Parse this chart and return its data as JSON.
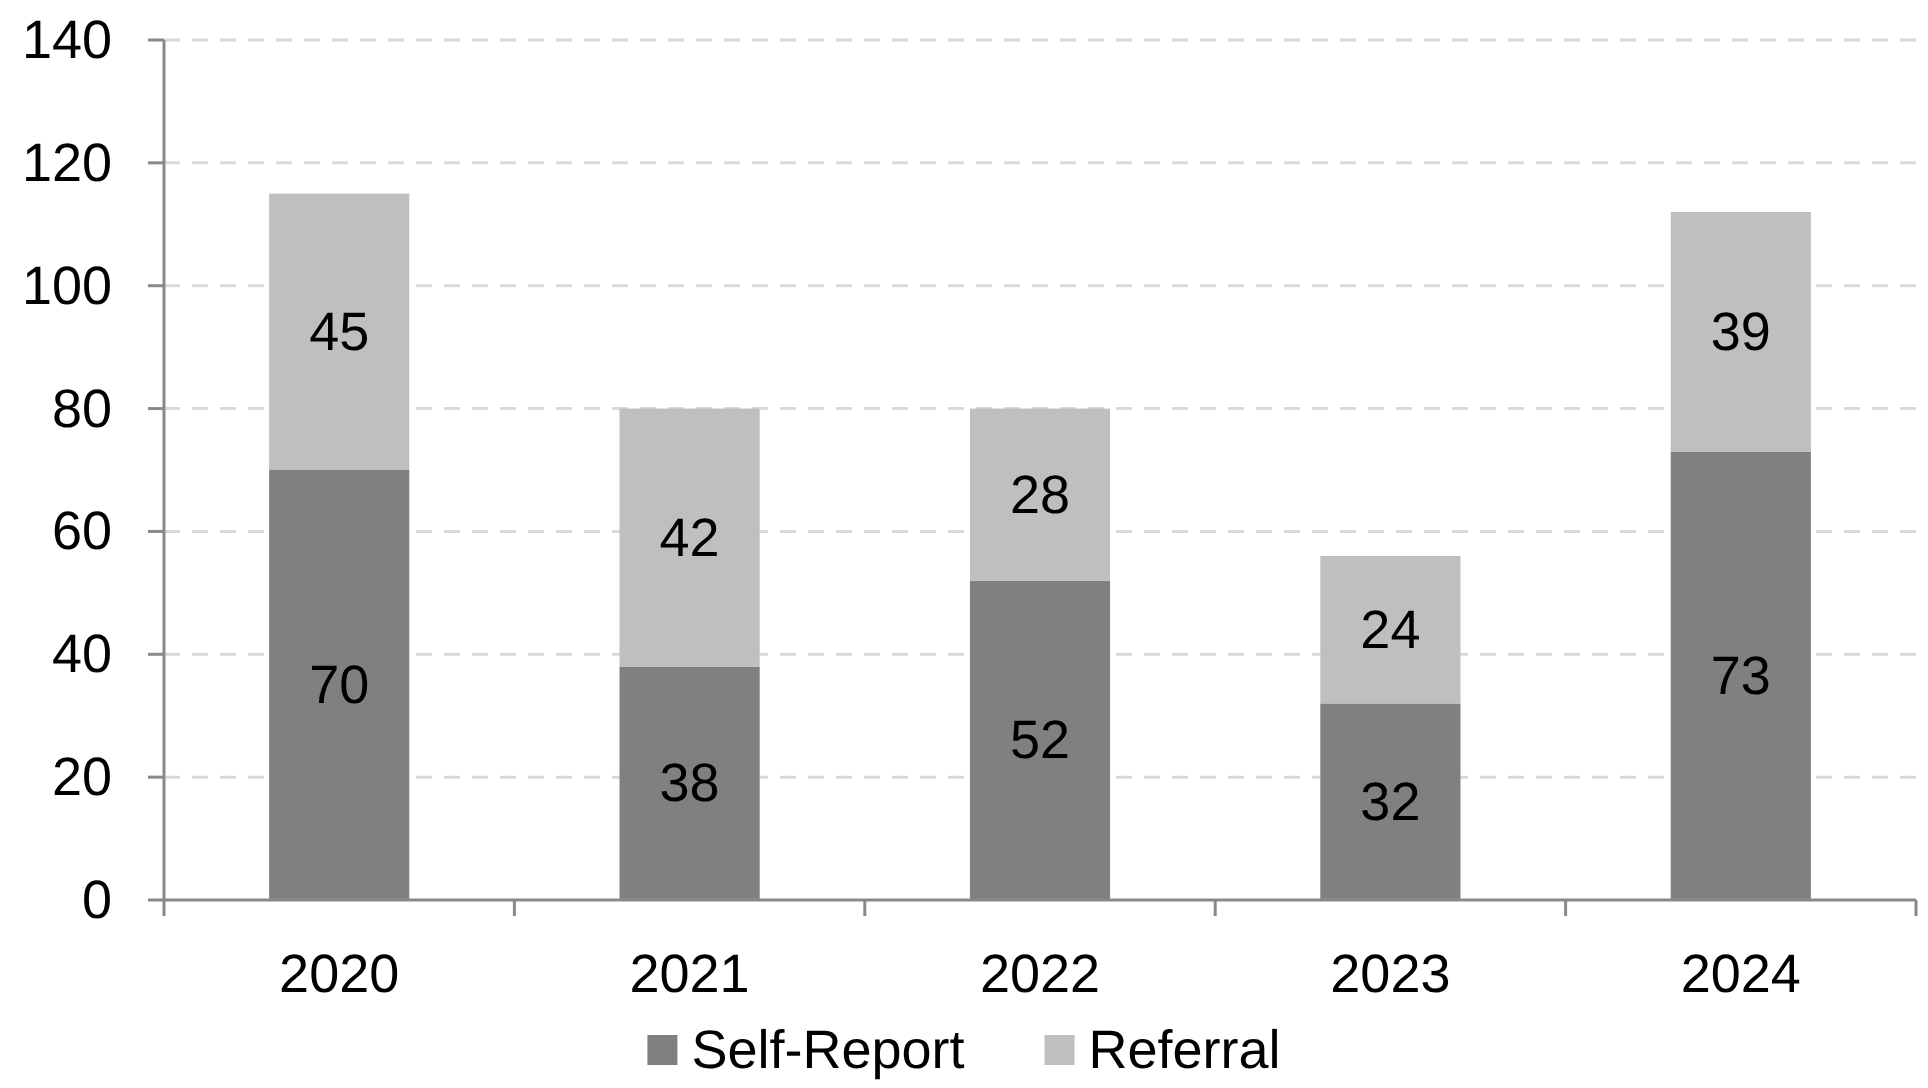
{
  "chart_data": {
    "type": "bar",
    "categories": [
      "2020",
      "2021",
      "2022",
      "2023",
      "2024"
    ],
    "series": [
      {
        "name": "Self-Report",
        "color": "#808080",
        "values": [
          70,
          38,
          52,
          32,
          73
        ]
      },
      {
        "name": "Referral",
        "color": "#bfbfbf",
        "values": [
          45,
          42,
          28,
          24,
          39
        ]
      }
    ],
    "stacked": true,
    "ylim": [
      0,
      140
    ],
    "yticks": [
      0,
      20,
      40,
      60,
      80,
      100,
      120,
      140
    ],
    "grid": "y",
    "legend": "bottom",
    "data_labels": true
  }
}
